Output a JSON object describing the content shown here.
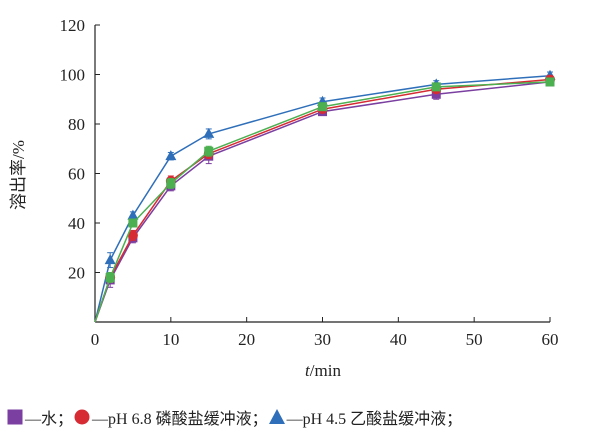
{
  "chart_data": {
    "type": "line",
    "xlabel": "t/min",
    "ylabel": "溶出率/%",
    "xlim": [
      0,
      60
    ],
    "ylim": [
      0,
      120
    ],
    "xticks": [
      0,
      10,
      20,
      30,
      40,
      50,
      60
    ],
    "yticks": [
      20,
      40,
      60,
      80,
      100,
      120
    ],
    "x": [
      0,
      2,
      5,
      10,
      15,
      30,
      45,
      60
    ],
    "grid": false,
    "legend_position": "bottom",
    "series": [
      {
        "name": "水",
        "legend_text": "—水；",
        "marker": "square",
        "color": "#7a3fa0",
        "values": [
          0,
          17,
          34,
          55,
          67,
          85,
          92,
          97
        ],
        "errors": [
          0,
          3,
          2,
          2,
          3,
          1.5,
          2,
          1.5
        ]
      },
      {
        "name": "pH 6.8 磷酸盐缓冲液",
        "legend_text": "—pH 6.8 磷酸盐缓冲液；",
        "marker": "circle",
        "color": "#d62b33",
        "values": [
          0,
          18,
          35,
          57,
          68,
          86,
          94,
          98
        ],
        "errors": [
          0,
          2,
          2,
          2,
          2,
          1.5,
          1.5,
          1.5
        ]
      },
      {
        "name": "pH 4.5 乙酸盐缓冲液",
        "legend_text": "—pH 4.5 乙酸盐缓冲液；",
        "marker": "triangle",
        "color": "#2f6fba",
        "values": [
          0,
          25,
          43,
          67,
          76,
          89,
          96,
          99.5
        ],
        "errors": [
          0,
          3,
          1.5,
          1.5,
          2,
          1.5,
          1.5,
          1.5
        ]
      },
      {
        "name": "",
        "legend_text": "",
        "marker": "square",
        "color": "#4caf50",
        "values": [
          0,
          18,
          40,
          56,
          69,
          87,
          95,
          97
        ],
        "errors": [
          0,
          2,
          1.5,
          2,
          2,
          1.5,
          1.5,
          1.5
        ]
      }
    ]
  }
}
